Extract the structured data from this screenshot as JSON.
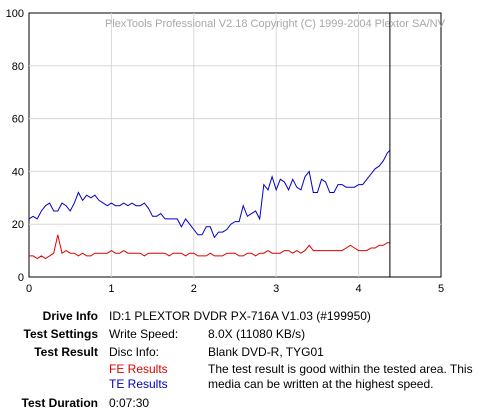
{
  "chart_data": {
    "type": "line",
    "title": "",
    "watermark": "PlexTools Professional V2.18 Copyright (C) 1999-2004 Plextor SA/NV",
    "xlim": [
      0,
      5
    ],
    "ylim": [
      0,
      100
    ],
    "x_ticks": [
      "0",
      "1",
      "2",
      "3",
      "4",
      "5"
    ],
    "y_ticks": [
      "0",
      "20",
      "40",
      "60",
      "80",
      "100"
    ],
    "grid": true,
    "end_marker_x": 4.38,
    "series": [
      {
        "color": "#0000c8",
        "x": [
          0.0,
          0.05,
          0.1,
          0.15,
          0.2,
          0.25,
          0.3,
          0.35,
          0.4,
          0.45,
          0.5,
          0.55,
          0.6,
          0.65,
          0.7,
          0.75,
          0.8,
          0.85,
          0.9,
          0.95,
          1.0,
          1.05,
          1.1,
          1.15,
          1.2,
          1.25,
          1.3,
          1.35,
          1.4,
          1.45,
          1.5,
          1.55,
          1.6,
          1.65,
          1.7,
          1.75,
          1.8,
          1.85,
          1.9,
          1.95,
          2.0,
          2.05,
          2.1,
          2.15,
          2.2,
          2.25,
          2.3,
          2.35,
          2.4,
          2.45,
          2.5,
          2.55,
          2.6,
          2.65,
          2.7,
          2.75,
          2.8,
          2.85,
          2.9,
          2.95,
          3.0,
          3.05,
          3.1,
          3.15,
          3.2,
          3.25,
          3.3,
          3.35,
          3.4,
          3.45,
          3.5,
          3.55,
          3.6,
          3.65,
          3.7,
          3.75,
          3.8,
          3.85,
          3.9,
          3.95,
          4.0,
          4.05,
          4.1,
          4.15,
          4.2,
          4.25,
          4.3,
          4.35,
          4.38
        ],
        "values": [
          22,
          23,
          22,
          25,
          27,
          28,
          25,
          25,
          28,
          27,
          25,
          28,
          32,
          29,
          31,
          30,
          31,
          29,
          28,
          27,
          28,
          27,
          27,
          28,
          27,
          28,
          27,
          27,
          28,
          26,
          23,
          23,
          24,
          22,
          22,
          22,
          22,
          19,
          22,
          20,
          18,
          16,
          16,
          19,
          19,
          15,
          17,
          17,
          18,
          20,
          21,
          21,
          27,
          23,
          24,
          25,
          22,
          35,
          33,
          38,
          33,
          37,
          36,
          33,
          37,
          34,
          33,
          38,
          40,
          32,
          32,
          37,
          36,
          32,
          32,
          35,
          35,
          34,
          34,
          34,
          35,
          35,
          37,
          39,
          41,
          42,
          44,
          47,
          48
        ]
      },
      {
        "color": "#e00000",
        "x": [
          0.0,
          0.05,
          0.1,
          0.15,
          0.2,
          0.25,
          0.3,
          0.35,
          0.4,
          0.45,
          0.5,
          0.55,
          0.6,
          0.65,
          0.7,
          0.75,
          0.8,
          0.85,
          0.9,
          0.95,
          1.0,
          1.05,
          1.1,
          1.15,
          1.2,
          1.25,
          1.3,
          1.35,
          1.4,
          1.45,
          1.5,
          1.55,
          1.6,
          1.65,
          1.7,
          1.75,
          1.8,
          1.85,
          1.9,
          1.95,
          2.0,
          2.05,
          2.1,
          2.15,
          2.2,
          2.25,
          2.3,
          2.35,
          2.4,
          2.45,
          2.5,
          2.55,
          2.6,
          2.65,
          2.7,
          2.75,
          2.8,
          2.85,
          2.9,
          2.95,
          3.0,
          3.05,
          3.1,
          3.15,
          3.2,
          3.25,
          3.3,
          3.35,
          3.4,
          3.45,
          3.5,
          3.55,
          3.6,
          3.65,
          3.7,
          3.75,
          3.8,
          3.85,
          3.9,
          3.95,
          4.0,
          4.05,
          4.1,
          4.15,
          4.2,
          4.25,
          4.3,
          4.35,
          4.38
        ],
        "values": [
          8,
          8,
          7,
          8,
          7,
          8,
          9,
          16,
          9,
          10,
          9,
          9,
          8,
          9,
          8,
          8,
          9,
          9,
          9,
          9,
          10,
          9,
          9,
          10,
          9,
          9,
          9,
          9,
          8,
          9,
          9,
          9,
          9,
          9,
          8,
          9,
          9,
          9,
          8,
          9,
          9,
          8,
          8,
          8,
          9,
          8,
          8,
          8,
          9,
          9,
          9,
          8,
          8,
          9,
          9,
          8,
          9,
          9,
          10,
          9,
          9,
          9,
          10,
          10,
          9,
          10,
          9,
          10,
          12,
          10,
          10,
          10,
          10,
          10,
          10,
          10,
          10,
          11,
          12,
          11,
          10,
          10,
          10,
          11,
          11,
          12,
          12,
          13,
          13
        ]
      }
    ]
  },
  "info": {
    "drive_info_label": "Drive Info",
    "drive_info_value": "ID:1 PLEXTOR DVDR PX-716A V1.03 (#199950)",
    "test_settings_label": "Test Settings",
    "write_speed_label": "Write Speed:",
    "write_speed_value": "8.0X (11080 KB/s)",
    "test_result_label": "Test Result",
    "disc_info_label": "Disc Info:",
    "disc_info_value": "Blank DVD-R, TYG01",
    "fe_results": "FE Results",
    "te_results": "TE Results",
    "result_text": "The test result is good within the tested area. This media can be written at the highest speed.",
    "test_duration_label": "Test Duration",
    "test_duration_value": "0:07:30"
  }
}
